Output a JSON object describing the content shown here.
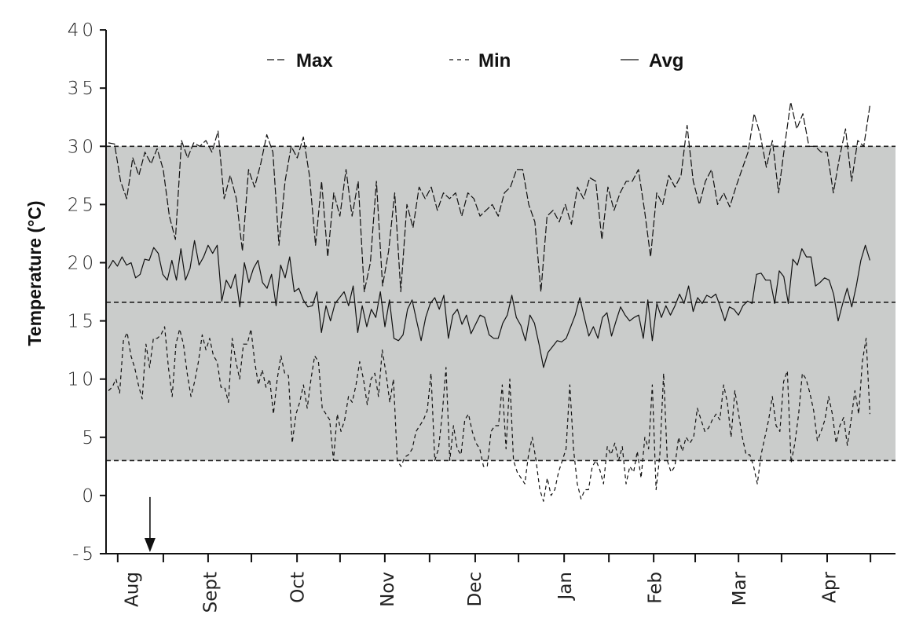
{
  "chart_data": {
    "type": "line",
    "title": "",
    "xlabel": "",
    "ylabel": "Temperature (°C)",
    "ylim": [
      -5,
      40
    ],
    "y_ticks": [
      "40",
      "35",
      "30",
      "25",
      "20",
      "15",
      "10",
      "5",
      "0",
      "-5"
    ],
    "y_tick_values": [
      40,
      35,
      30,
      25,
      20,
      15,
      10,
      5,
      0,
      -5
    ],
    "x_unit": "days",
    "xlim": [
      -1,
      271
    ],
    "x_ticks_days": [
      3.2,
      18.9,
      34.3,
      49.2,
      64.9,
      79.7,
      95.1,
      110.5,
      126.2,
      141.1,
      156.8,
      172.2,
      187.6,
      201.9,
      216.8,
      231.6,
      247.3,
      262.2
    ],
    "months": [
      {
        "label": "Aug",
        "day": 8
      },
      {
        "label": "Sept",
        "day": 35
      },
      {
        "label": "Oct",
        "day": 65
      },
      {
        "label": "Nov",
        "day": 96
      },
      {
        "label": "Dec",
        "day": 126
      },
      {
        "label": "Jan",
        "day": 157
      },
      {
        "label": "Feb",
        "day": 188
      },
      {
        "label": "Mar",
        "day": 217
      },
      {
        "label": "Apr",
        "day": 248
      }
    ],
    "shaded_band": [
      3,
      30
    ],
    "reference_lines": [
      30,
      16.6,
      3
    ],
    "arrow": {
      "day": 14.3,
      "from": 0,
      "to": -5
    },
    "legend": {
      "position": "top",
      "entries": [
        "Max",
        "Min",
        "Avg"
      ]
    },
    "series": [
      {
        "name": "Max",
        "style": "long-dash",
        "day_range": [
          0,
          262
        ],
        "values": [
          30.3,
          30.2,
          27,
          25.5,
          29,
          27.5,
          29.5,
          28.5,
          29.8,
          28,
          24,
          22,
          30.5,
          29,
          30.3,
          30,
          30.5,
          29.5,
          31.3,
          25.5,
          27.5,
          25.5,
          21,
          28,
          26.5,
          28.5,
          31,
          29.5,
          21.5,
          27,
          30,
          29,
          30.8,
          27.5,
          21.5,
          27,
          20.5,
          26,
          24,
          28,
          24,
          27,
          17.5,
          20,
          27,
          18,
          21,
          26,
          17.5,
          25,
          23,
          26.5,
          25.5,
          26.5,
          24.5,
          26,
          25.5,
          26,
          24,
          26,
          25.5,
          24,
          24.5,
          25,
          24,
          26,
          26.5,
          28,
          28,
          25,
          23.5,
          17.5,
          24,
          24.5,
          23.5,
          25,
          23.3,
          26.5,
          25.5,
          27.3,
          27,
          22,
          26.5,
          24.5,
          26,
          27,
          27,
          28,
          24.5,
          20.5,
          26,
          25,
          27.5,
          26.5,
          27.5,
          31.8,
          27,
          25,
          27,
          28,
          25,
          26,
          24.8,
          26.5,
          28,
          29.5,
          32.8,
          31,
          28.2,
          30.5,
          26,
          30,
          33.8,
          31.5,
          32.8,
          30,
          30,
          29.5,
          29.5,
          26,
          29,
          31.5,
          27,
          30.5,
          30,
          33.5
        ]
      },
      {
        "name": "Min",
        "style": "short-dash",
        "day_range": [
          0,
          262
        ],
        "values": [
          9,
          9.3,
          10,
          8.8,
          13.3,
          14,
          12,
          11,
          9.5,
          8.3,
          13,
          11,
          13.5,
          13.5,
          13.8,
          14.5,
          11,
          8.5,
          13,
          14.3,
          13,
          10.5,
          8.5,
          9.8,
          11.5,
          13.8,
          12.5,
          13.5,
          12,
          11.5,
          9.3,
          9.3,
          8,
          13.5,
          11.5,
          10,
          13,
          13,
          14.3,
          11.5,
          9.5,
          10.8,
          9.3,
          10,
          7,
          10,
          12,
          10.5,
          10.3,
          4.5,
          7,
          8,
          9.5,
          7.5,
          10,
          12,
          11.5,
          7.5,
          7,
          6.5,
          3,
          7,
          5.5,
          6.5,
          8.5,
          8,
          9.5,
          11.5,
          10,
          7.8,
          10,
          10.5,
          8.5,
          12.5,
          10.5,
          8,
          10,
          3,
          2.5,
          3.3,
          3.5,
          4,
          5.5,
          6,
          6.5,
          7.3,
          10.5,
          3,
          4,
          7,
          11,
          3,
          6,
          4,
          3.5,
          6.5,
          7,
          5.5,
          4.5,
          4,
          2.5,
          2.5,
          5.5,
          6,
          6,
          9.5,
          4,
          10,
          3,
          2,
          1.5,
          1,
          3.5,
          5,
          3,
          0.5,
          -0.5,
          1.5,
          0,
          0.5,
          2,
          3,
          4,
          9.5,
          4,
          1,
          -0.3,
          0.5,
          0.5,
          2.5,
          3,
          2.2,
          1,
          4.2,
          3.5,
          4.5,
          3,
          4.2,
          1,
          2.5,
          2,
          3.8,
          1.5,
          5,
          4,
          9.5,
          0.5,
          3.5,
          10.5,
          3,
          2,
          2.5,
          5,
          3.8,
          5,
          4.5,
          5,
          7.5,
          6.5,
          5.5,
          5.8,
          6.5,
          7,
          6.5,
          9.5,
          8,
          5,
          9,
          7,
          5,
          3.5,
          3.5,
          2.5,
          1,
          3.5,
          5,
          6.5,
          8.5,
          6,
          5.5,
          9.8,
          10.7,
          2.8,
          4.5,
          7,
          10.5,
          10,
          8.8,
          7.3,
          4.7,
          5.5,
          6.5,
          8.5,
          7,
          4.5,
          6,
          6.7,
          4.3,
          6.5,
          9,
          7,
          11.5,
          13.5,
          7
        ]
      },
      {
        "name": "Avg",
        "style": "solid",
        "day_range": [
          0,
          262
        ],
        "values": [
          19.5,
          20.2,
          19.7,
          20.5,
          19.8,
          20,
          18.7,
          19,
          20.3,
          20.2,
          21.3,
          20.8,
          19,
          18.5,
          20.2,
          18.5,
          21.2,
          18.5,
          19.5,
          21.9,
          19.8,
          20.5,
          21.5,
          20.8,
          21.5,
          16.7,
          18.5,
          17.8,
          19,
          16.2,
          20,
          18.3,
          19.5,
          20.2,
          18.3,
          17.8,
          19,
          16.3,
          19.8,
          18.7,
          20.5,
          17.5,
          17.8,
          16.8,
          16.2,
          16.3,
          17.5,
          14,
          16.3,
          15,
          16.5,
          17,
          17.5,
          16.3,
          18,
          14,
          16.3,
          14.5,
          16,
          15.3,
          17.5,
          14.5,
          16.8,
          13.5,
          13.3,
          13.8,
          16,
          16.8,
          15,
          13.3,
          15.3,
          16.5,
          17,
          16,
          17.2,
          13.5,
          15.5,
          16,
          14.7,
          15.5,
          13.9,
          14.7,
          15.5,
          15.3,
          13.8,
          13.5,
          13.5,
          14.8,
          15.5,
          17.2,
          15.3,
          14.6,
          13.3,
          15.5,
          14.8,
          13,
          11,
          12.3,
          12.8,
          13.3,
          13.2,
          13.5,
          14.5,
          15.5,
          17,
          15.3,
          13.7,
          14.5,
          13.5,
          15.3,
          15.7,
          13.7,
          15,
          16.2,
          15.5,
          15,
          15.3,
          15.5,
          13.5,
          16.8,
          13.3,
          16.5,
          15.3,
          16.3,
          15.5,
          16.3,
          17.3,
          16.5,
          18,
          15.8,
          17,
          16.5,
          17.2,
          17,
          17.3,
          16.2,
          15,
          16.2,
          16,
          15.5,
          16.3,
          16.7,
          16.5,
          19,
          19.1,
          18.5,
          18.5,
          16.5,
          19.3,
          18.8,
          16.5,
          20.3,
          19.8,
          21.2,
          20.5,
          20.5,
          18,
          18.3,
          18.7,
          18.5,
          17.3,
          15,
          16.5,
          17.8,
          16.2,
          18,
          20.2,
          21.5,
          20.2
        ]
      }
    ],
    "colors": {
      "band": "#cacccb",
      "line": "#111111"
    }
  }
}
